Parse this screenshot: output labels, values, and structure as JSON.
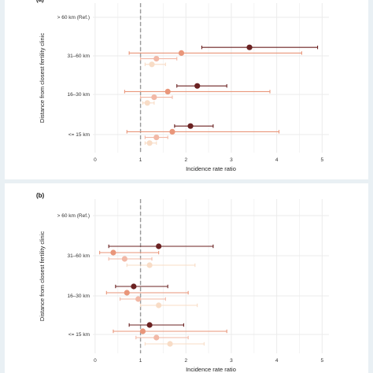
{
  "chart_data": [
    {
      "type": "scatter",
      "panel_label": "(a)",
      "title": "",
      "xlabel": "Incidence rate ratio",
      "ylabel": "Distance from closest fertility clinic",
      "xlim": [
        -0.05,
        5.15
      ],
      "x_ticks": [
        "0",
        "1",
        "2",
        "3",
        "4",
        "5"
      ],
      "reference_line": 1,
      "categories": [
        "> 60 km (Ref.)",
        "31–60 km",
        "16–30 km",
        "<= 15 km"
      ],
      "series": [
        {
          "color": "#6b2222",
          "points": [
            null,
            {
              "est": 3.4,
              "lo": 2.35,
              "hi": 4.9
            },
            {
              "est": 2.25,
              "lo": 1.8,
              "hi": 2.9
            },
            {
              "est": 2.1,
              "lo": 1.75,
              "hi": 2.6
            }
          ]
        },
        {
          "color": "#e9967a",
          "points": [
            null,
            {
              "est": 1.9,
              "lo": 0.75,
              "hi": 4.55
            },
            {
              "est": 1.6,
              "lo": 0.65,
              "hi": 3.85
            },
            {
              "est": 1.7,
              "lo": 0.7,
              "hi": 4.05
            }
          ]
        },
        {
          "color": "#f2b8a6",
          "points": [
            null,
            {
              "est": 1.35,
              "lo": 1.0,
              "hi": 1.8
            },
            {
              "est": 1.3,
              "lo": 1.0,
              "hi": 1.7
            },
            {
              "est": 1.35,
              "lo": 1.1,
              "hi": 1.6
            }
          ]
        },
        {
          "color": "#f8dcc6",
          "points": [
            null,
            {
              "est": 1.25,
              "lo": 1.1,
              "hi": 1.55
            },
            {
              "est": 1.15,
              "lo": 1.05,
              "hi": 1.3
            },
            {
              "est": 1.2,
              "lo": 1.1,
              "hi": 1.35
            }
          ]
        }
      ]
    },
    {
      "type": "scatter",
      "panel_label": "(b)",
      "title": "",
      "xlabel": "Incidence rate ratio",
      "ylabel": "Distance from closest fertility clinic",
      "xlim": [
        -0.05,
        5.15
      ],
      "x_ticks": [
        "0",
        "1",
        "2",
        "3",
        "4",
        "5"
      ],
      "reference_line": 1,
      "categories": [
        "> 60 km (Ref.)",
        "31–60 km",
        "16–30 km",
        "<= 15 km"
      ],
      "series": [
        {
          "color": "#6b2222",
          "points": [
            null,
            {
              "est": 1.4,
              "lo": 0.3,
              "hi": 2.6
            },
            {
              "est": 0.85,
              "lo": 0.45,
              "hi": 1.6
            },
            {
              "est": 1.2,
              "lo": 0.75,
              "hi": 1.95
            }
          ]
        },
        {
          "color": "#e9967a",
          "points": [
            null,
            {
              "est": 0.4,
              "lo": 0.1,
              "hi": 1.4
            },
            {
              "est": 0.7,
              "lo": 0.25,
              "hi": 2.05
            },
            {
              "est": 1.05,
              "lo": 0.4,
              "hi": 2.9
            }
          ]
        },
        {
          "color": "#f2b8a6",
          "points": [
            null,
            {
              "est": 0.65,
              "lo": 0.3,
              "hi": 1.25
            },
            {
              "est": 0.95,
              "lo": 0.55,
              "hi": 1.55
            },
            {
              "est": 1.35,
              "lo": 0.9,
              "hi": 2.05
            }
          ]
        },
        {
          "color": "#f8dcc6",
          "points": [
            null,
            {
              "est": 1.2,
              "lo": 0.7,
              "hi": 2.2
            },
            {
              "est": 1.4,
              "lo": 1.0,
              "hi": 2.25
            },
            {
              "est": 1.65,
              "lo": 1.1,
              "hi": 2.4
            }
          ]
        }
      ]
    }
  ]
}
